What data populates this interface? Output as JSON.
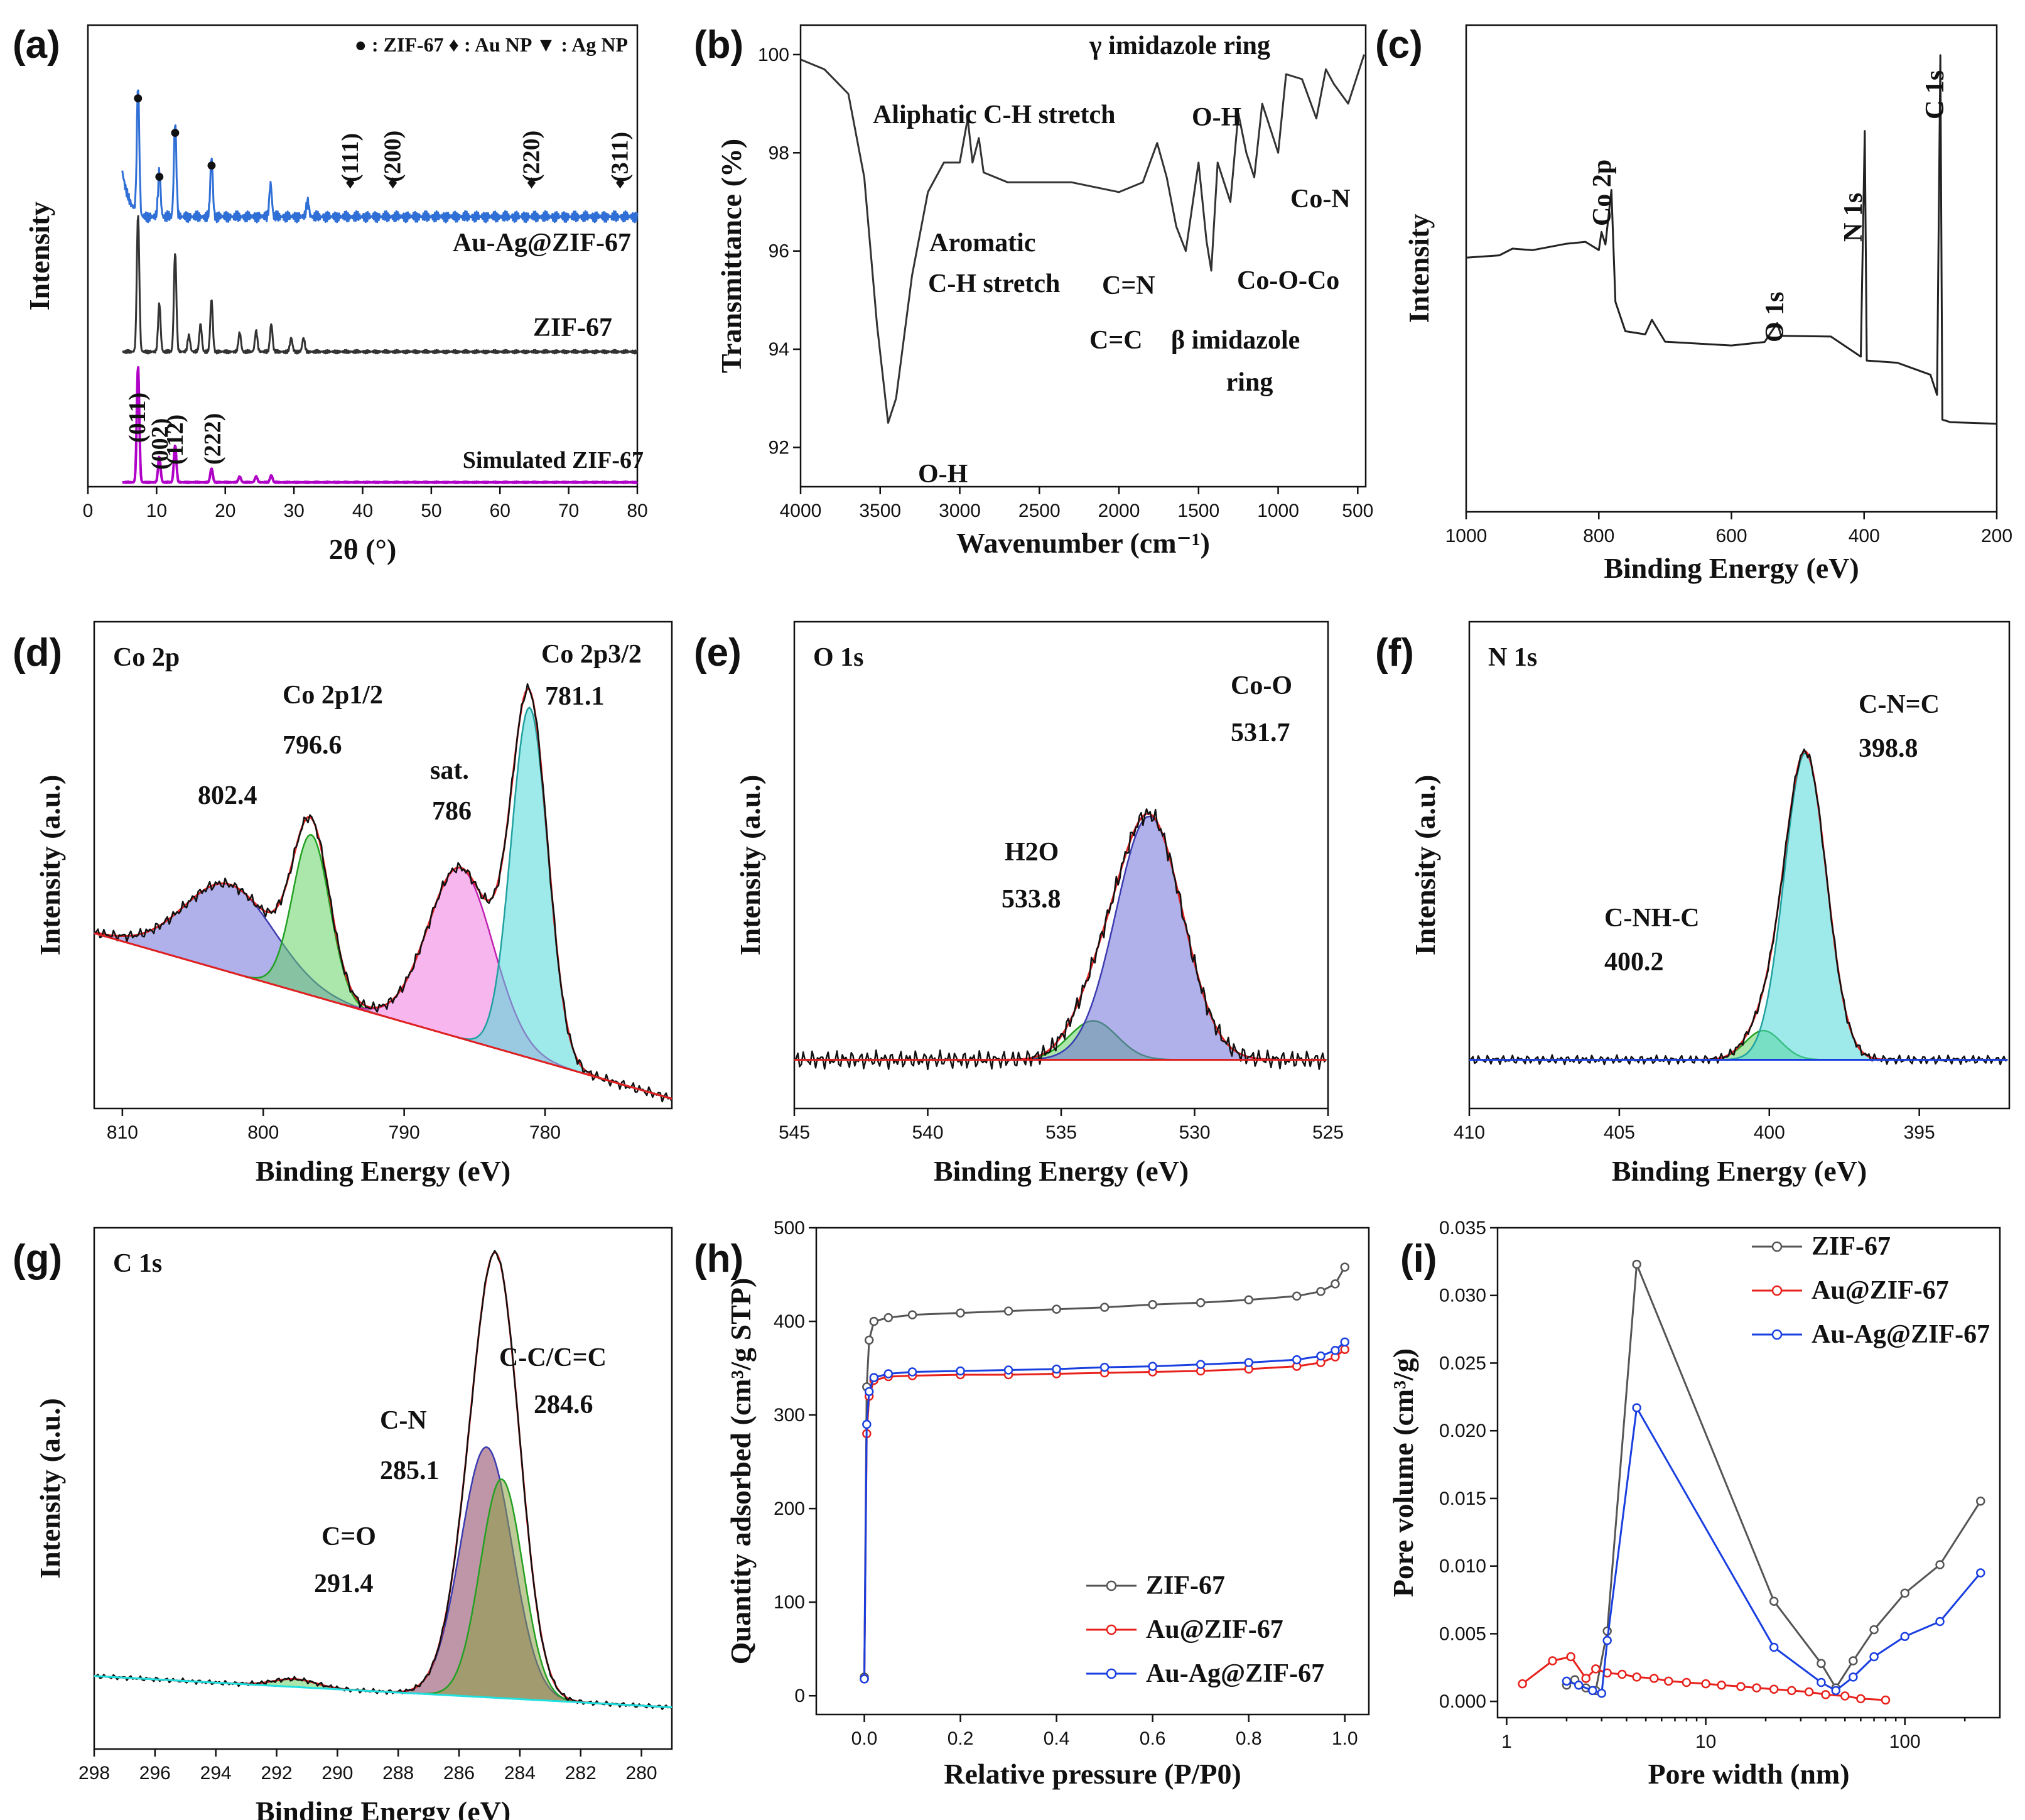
{
  "chart_data": [
    {
      "panel": "(a)",
      "type": "line",
      "xlabel": "2θ (°)",
      "ylabel": "Intensity",
      "xlim": [
        0,
        80
      ],
      "xticks": [
        "0",
        "10",
        "20",
        "30",
        "40",
        "50",
        "60",
        "70",
        "80"
      ],
      "legend": "● : ZIF-67 ♦ : Au NP ▼ : Ag NP",
      "series": [
        {
          "name": "Au-Ag@ZIF-67",
          "color": "#2f6fd6",
          "peaks": [
            [
              7.3,
              1.0
            ],
            [
              10.4,
              0.35
            ],
            [
              12.7,
              0.72
            ],
            [
              18.0,
              0.45
            ],
            [
              26.6,
              0.25
            ],
            [
              32.0,
              0.12
            ]
          ]
        },
        {
          "name": "ZIF-67",
          "color": "#333333",
          "peaks": [
            [
              7.3,
              1.0
            ],
            [
              10.4,
              0.35
            ],
            [
              12.7,
              0.72
            ],
            [
              14.7,
              0.12
            ],
            [
              16.4,
              0.2
            ],
            [
              18.0,
              0.38
            ],
            [
              22.1,
              0.14
            ],
            [
              24.5,
              0.15
            ],
            [
              26.7,
              0.2
            ],
            [
              29.6,
              0.1
            ],
            [
              31.4,
              0.1
            ]
          ]
        },
        {
          "name": "Simulated ZIF-67",
          "color": "#b000c8",
          "peaks": [
            [
              7.3,
              1.0
            ],
            [
              10.4,
              0.22
            ],
            [
              12.7,
              0.32
            ],
            [
              18.0,
              0.12
            ],
            [
              22.1,
              0.05
            ],
            [
              24.5,
              0.05
            ],
            [
              26.7,
              0.06
            ]
          ]
        }
      ],
      "markers": [
        [
          7.3,
          "●"
        ],
        [
          10.4,
          "●"
        ],
        [
          12.7,
          "●"
        ],
        [
          18.0,
          "●"
        ],
        [
          38.2,
          "♦"
        ],
        [
          44.4,
          "♦"
        ],
        [
          64.6,
          "♦"
        ],
        [
          77.5,
          "♦"
        ]
      ],
      "annotations": [
        "(111)",
        "(200)",
        "(220)",
        "(311)",
        "(011)",
        "(002)",
        "(112)",
        "(222)"
      ]
    },
    {
      "panel": "(b)",
      "type": "line",
      "xlabel": "Wavenumber (cm⁻¹)",
      "ylabel": "Transmittance (%)",
      "xlim": [
        4000,
        450
      ],
      "ylim": [
        91.2,
        100.6
      ],
      "xticks": [
        "4000",
        "3500",
        "3000",
        "2500",
        "2000",
        "1500",
        "1000",
        "500"
      ],
      "yticks": [
        "92",
        "94",
        "96",
        "98",
        "100"
      ],
      "points": [
        [
          4000,
          99.9
        ],
        [
          3850,
          99.7
        ],
        [
          3700,
          99.2
        ],
        [
          3600,
          97.5
        ],
        [
          3520,
          94.5
        ],
        [
          3450,
          92.5
        ],
        [
          3400,
          93.0
        ],
        [
          3300,
          95.5
        ],
        [
          3200,
          97.2
        ],
        [
          3100,
          97.8
        ],
        [
          3000,
          97.8
        ],
        [
          2950,
          98.7
        ],
        [
          2920,
          97.8
        ],
        [
          2880,
          98.3
        ],
        [
          2850,
          97.6
        ],
        [
          2700,
          97.4
        ],
        [
          2500,
          97.4
        ],
        [
          2300,
          97.4
        ],
        [
          2000,
          97.2
        ],
        [
          1850,
          97.4
        ],
        [
          1760,
          98.2
        ],
        [
          1700,
          97.5
        ],
        [
          1640,
          96.5
        ],
        [
          1580,
          96.0
        ],
        [
          1500,
          97.8
        ],
        [
          1450,
          96.2
        ],
        [
          1420,
          95.6
        ],
        [
          1380,
          97.8
        ],
        [
          1300,
          97.0
        ],
        [
          1250,
          98.8
        ],
        [
          1200,
          98.0
        ],
        [
          1150,
          97.5
        ],
        [
          1100,
          99.0
        ],
        [
          1000,
          98.0
        ],
        [
          950,
          99.6
        ],
        [
          850,
          99.5
        ],
        [
          760,
          98.7
        ],
        [
          700,
          99.7
        ],
        [
          650,
          99.4
        ],
        [
          560,
          99.0
        ],
        [
          500,
          99.6
        ],
        [
          460,
          100.0
        ]
      ],
      "annotations": [
        "Aliphatic C-H stretch",
        "Aromatic",
        "C-H stretch",
        "O-H",
        "C=N",
        "C=C",
        "β imidazole",
        "ring",
        "O-H",
        "γ imidazole ring",
        "Co-N",
        "Co-O-Co"
      ]
    },
    {
      "panel": "(c)",
      "type": "line",
      "xlabel": "Binding Energy (eV)",
      "ylabel": "Intensity",
      "xlim": [
        1000,
        200
      ],
      "xticks": [
        "1000",
        "800",
        "600",
        "400",
        "200"
      ],
      "points": [
        [
          1000,
          0.62
        ],
        [
          950,
          0.63
        ],
        [
          930,
          0.64
        ],
        [
          900,
          0.63
        ],
        [
          850,
          0.64
        ],
        [
          820,
          0.65
        ],
        [
          800,
          0.64
        ],
        [
          796,
          0.67
        ],
        [
          790,
          0.64
        ],
        [
          781,
          0.74
        ],
        [
          775,
          0.54
        ],
        [
          760,
          0.49
        ],
        [
          730,
          0.48
        ],
        [
          720,
          0.5
        ],
        [
          700,
          0.46
        ],
        [
          600,
          0.46
        ],
        [
          550,
          0.47
        ],
        [
          531,
          0.5
        ],
        [
          525,
          0.47
        ],
        [
          450,
          0.47
        ],
        [
          405,
          0.44
        ],
        [
          399,
          0.86
        ],
        [
          396,
          0.43
        ],
        [
          350,
          0.42
        ],
        [
          300,
          0.4
        ],
        [
          290,
          0.37
        ],
        [
          285,
          1.0
        ],
        [
          282,
          0.32
        ],
        [
          270,
          0.31
        ],
        [
          200,
          0.31
        ]
      ],
      "annotations": [
        "Co 2p",
        "O 1s",
        "N 1s",
        "C 1s"
      ]
    },
    {
      "panel": "(d)",
      "type": "area",
      "title": "Co 2p",
      "xlabel": "Binding Energy (eV)",
      "ylabel": "Intensity (a.u.)",
      "xlim": [
        812,
        771
      ],
      "xticks": [
        "810",
        "800",
        "790",
        "780"
      ],
      "peaks": [
        {
          "name": "802.4",
          "center": 802.4
        },
        {
          "name": "Co 2p1/2 796.6",
          "center": 796.6
        },
        {
          "name": "sat. 786",
          "center": 786
        },
        {
          "name": "Co 2p3/2 781.1",
          "center": 781.1
        }
      ],
      "annotations": [
        "802.4",
        "Co 2p1/2",
        "796.6",
        "sat.",
        "786",
        "Co 2p3/2",
        "781.1"
      ]
    },
    {
      "panel": "(e)",
      "type": "area",
      "title": "O 1s",
      "xlabel": "Binding Energy (eV)",
      "ylabel": "Intensity (a.u.)",
      "xlim": [
        545,
        525
      ],
      "xticks": [
        "545",
        "540",
        "535",
        "530",
        "525"
      ],
      "peaks": [
        {
          "name": "H2O",
          "center": 533.8
        },
        {
          "name": "Co-O",
          "center": 531.7
        }
      ],
      "annotations": [
        "H2O",
        "533.8",
        "Co-O",
        "531.7"
      ]
    },
    {
      "panel": "(f)",
      "type": "area",
      "title": "N 1s",
      "xlabel": "Binding Energy (eV)",
      "ylabel": "Intensity (a.u.)",
      "xlim": [
        410,
        392
      ],
      "xticks": [
        "410",
        "405",
        "400",
        "395"
      ],
      "peaks": [
        {
          "name": "C-NH-C",
          "center": 400.2
        },
        {
          "name": "C-N=C",
          "center": 398.8
        }
      ],
      "annotations": [
        "C-NH-C",
        "400.2",
        "C-N=C",
        "398.8"
      ]
    },
    {
      "panel": "(g)",
      "type": "area",
      "title": "C 1s",
      "xlabel": "Binding Energy (eV)",
      "ylabel": "Intensity (a.u.)",
      "xlim": [
        298,
        279
      ],
      "xticks": [
        "298",
        "296",
        "294",
        "292",
        "290",
        "288",
        "286",
        "284",
        "282",
        "280"
      ],
      "peaks": [
        {
          "name": "C=O",
          "center": 291.4
        },
        {
          "name": "C-N",
          "center": 285.1
        },
        {
          "name": "C-C/C=C",
          "center": 284.6
        }
      ],
      "annotations": [
        "C=O",
        "291.4",
        "C-N",
        "285.1",
        "C-C/C=C",
        "284.6"
      ]
    },
    {
      "panel": "(h)",
      "type": "line",
      "xlabel": "Relative pressure (P/P0)",
      "ylabel": "Quantity adsorbed (cm³/g STP)",
      "xlim": [
        -0.1,
        1.05
      ],
      "ylim": [
        -20,
        500
      ],
      "xticks": [
        "0.0",
        "0.2",
        "0.4",
        "0.6",
        "0.8",
        "1.0"
      ],
      "yticks": [
        "0",
        "100",
        "200",
        "300",
        "400",
        "500"
      ],
      "legend": "bottom-right",
      "series": [
        {
          "name": "ZIF-67",
          "color": "#555555",
          "x": [
            0,
            0.005,
            0.01,
            0.02,
            0.05,
            0.1,
            0.2,
            0.3,
            0.4,
            0.5,
            0.6,
            0.7,
            0.8,
            0.9,
            0.95,
            0.98,
            1.0
          ],
          "y": [
            20,
            330,
            380,
            400,
            404,
            407,
            409,
            411,
            413,
            415,
            418,
            420,
            423,
            427,
            432,
            440,
            458
          ]
        },
        {
          "name": "Au@ZIF-67",
          "color": "#e8211c",
          "x": [
            0,
            0.005,
            0.01,
            0.02,
            0.05,
            0.1,
            0.2,
            0.3,
            0.4,
            0.5,
            0.6,
            0.7,
            0.8,
            0.9,
            0.95,
            0.98,
            1.0
          ],
          "y": [
            18,
            280,
            320,
            337,
            341,
            342,
            343,
            343,
            344,
            345,
            346,
            347,
            349,
            352,
            356,
            362,
            370
          ]
        },
        {
          "name": "Au-Ag@ZIF-67",
          "color": "#1a3fe0",
          "x": [
            0,
            0.005,
            0.01,
            0.02,
            0.05,
            0.1,
            0.2,
            0.3,
            0.4,
            0.5,
            0.6,
            0.7,
            0.8,
            0.9,
            0.95,
            0.98,
            1.0
          ],
          "y": [
            18,
            290,
            325,
            340,
            344,
            346,
            347,
            348,
            349,
            351,
            352,
            354,
            356,
            359,
            363,
            369,
            378
          ]
        }
      ]
    },
    {
      "panel": "(i)",
      "type": "line",
      "xlabel": "Pore width (nm)",
      "ylabel": "Pore volume (cm³/g)",
      "xscale": "log",
      "xlim": [
        0.9,
        300
      ],
      "ylim": [
        -0.0012,
        0.035
      ],
      "xticks": [
        "1",
        "10",
        "100"
      ],
      "yticks": [
        "0.000",
        "0.005",
        "0.010",
        "0.015",
        "0.020",
        "0.025",
        "0.030",
        "0.035"
      ],
      "legend": "top-left",
      "series": [
        {
          "name": "ZIF-67",
          "color": "#555555",
          "x": [
            2.0,
            2.2,
            2.5,
            2.8,
            3.2,
            4.5,
            22,
            38,
            45,
            55,
            70,
            100,
            150,
            240
          ],
          "y": [
            0.0012,
            0.0016,
            0.001,
            0.0008,
            0.0052,
            0.0323,
            0.0074,
            0.0028,
            0.001,
            0.003,
            0.0053,
            0.008,
            0.0101,
            0.0148
          ]
        },
        {
          "name": "Au@ZIF-67",
          "color": "#e8211c",
          "x": [
            1.2,
            1.7,
            2.1,
            2.5,
            2.8,
            3.2,
            3.8,
            4.5,
            5.5,
            6.5,
            8,
            10,
            12,
            15,
            18,
            22,
            27,
            33,
            40,
            50,
            60,
            80
          ],
          "y": [
            0.0013,
            0.003,
            0.0033,
            0.0017,
            0.0024,
            0.0021,
            0.002,
            0.0018,
            0.0017,
            0.0015,
            0.0014,
            0.0013,
            0.0012,
            0.0011,
            0.001,
            0.0009,
            0.0008,
            0.0007,
            0.0005,
            0.0004,
            0.0002,
            0.0001
          ]
        },
        {
          "name": "Au-Ag@ZIF-67",
          "color": "#1a3fe0",
          "x": [
            2.0,
            2.3,
            2.7,
            3.0,
            3.2,
            4.5,
            22,
            38,
            45,
            55,
            70,
            100,
            150,
            240
          ],
          "y": [
            0.0015,
            0.0012,
            0.0008,
            0.0006,
            0.0045,
            0.0217,
            0.004,
            0.0014,
            0.0008,
            0.0018,
            0.0033,
            0.0048,
            0.0059,
            0.0095
          ]
        }
      ]
    }
  ]
}
